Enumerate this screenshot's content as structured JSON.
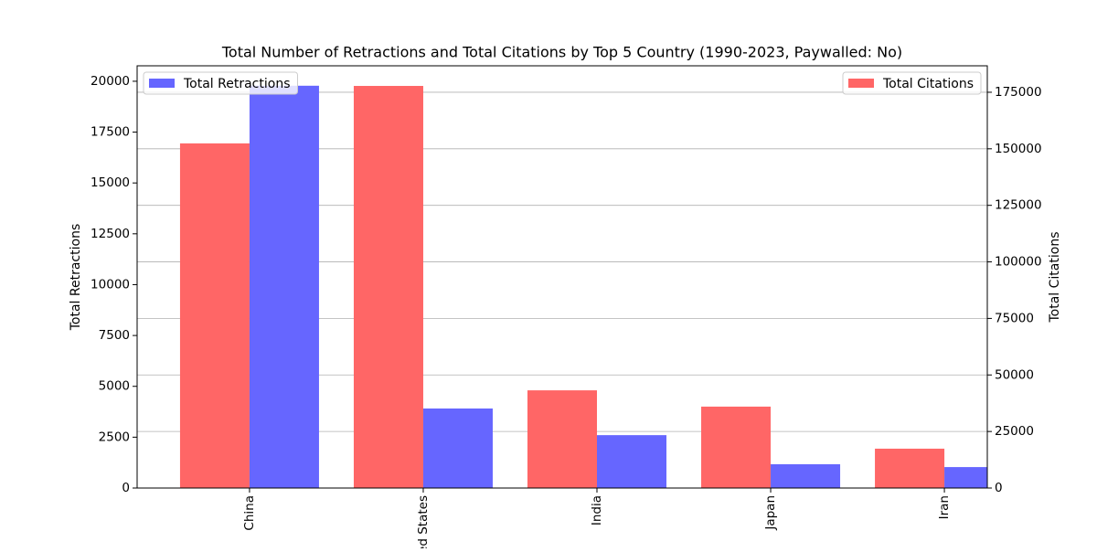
{
  "chart_data": {
    "type": "bar",
    "title": "Total Number of Retractions and Total Citations by Top 5 Country (1990-2023, Paywalled: No)",
    "categories": [
      "China",
      "United States",
      "India",
      "Japan",
      "Iran"
    ],
    "y_label": "Total Retractions",
    "y2_label": "Total Citations",
    "series": [
      {
        "name": "Total Citations",
        "color": "#ff6666",
        "axis": "y2",
        "legend_loc": "upper right",
        "values": [
          152400,
          177800,
          43200,
          36000,
          17400
        ]
      },
      {
        "name": "Total Retractions",
        "color": "#6666ff",
        "axis": "y",
        "legend_loc": "upper left",
        "values": [
          19780,
          3910,
          2600,
          1170,
          1030
        ]
      }
    ],
    "ylim": [
      0,
      20760
    ],
    "yticks": [
      0,
      2500,
      5000,
      7500,
      10000,
      12500,
      15000,
      17500,
      20000
    ],
    "y2lim": [
      0,
      186700
    ],
    "y2ticks": [
      0,
      25000,
      50000,
      75000,
      100000,
      125000,
      150000,
      175000
    ],
    "grid": "y2"
  }
}
